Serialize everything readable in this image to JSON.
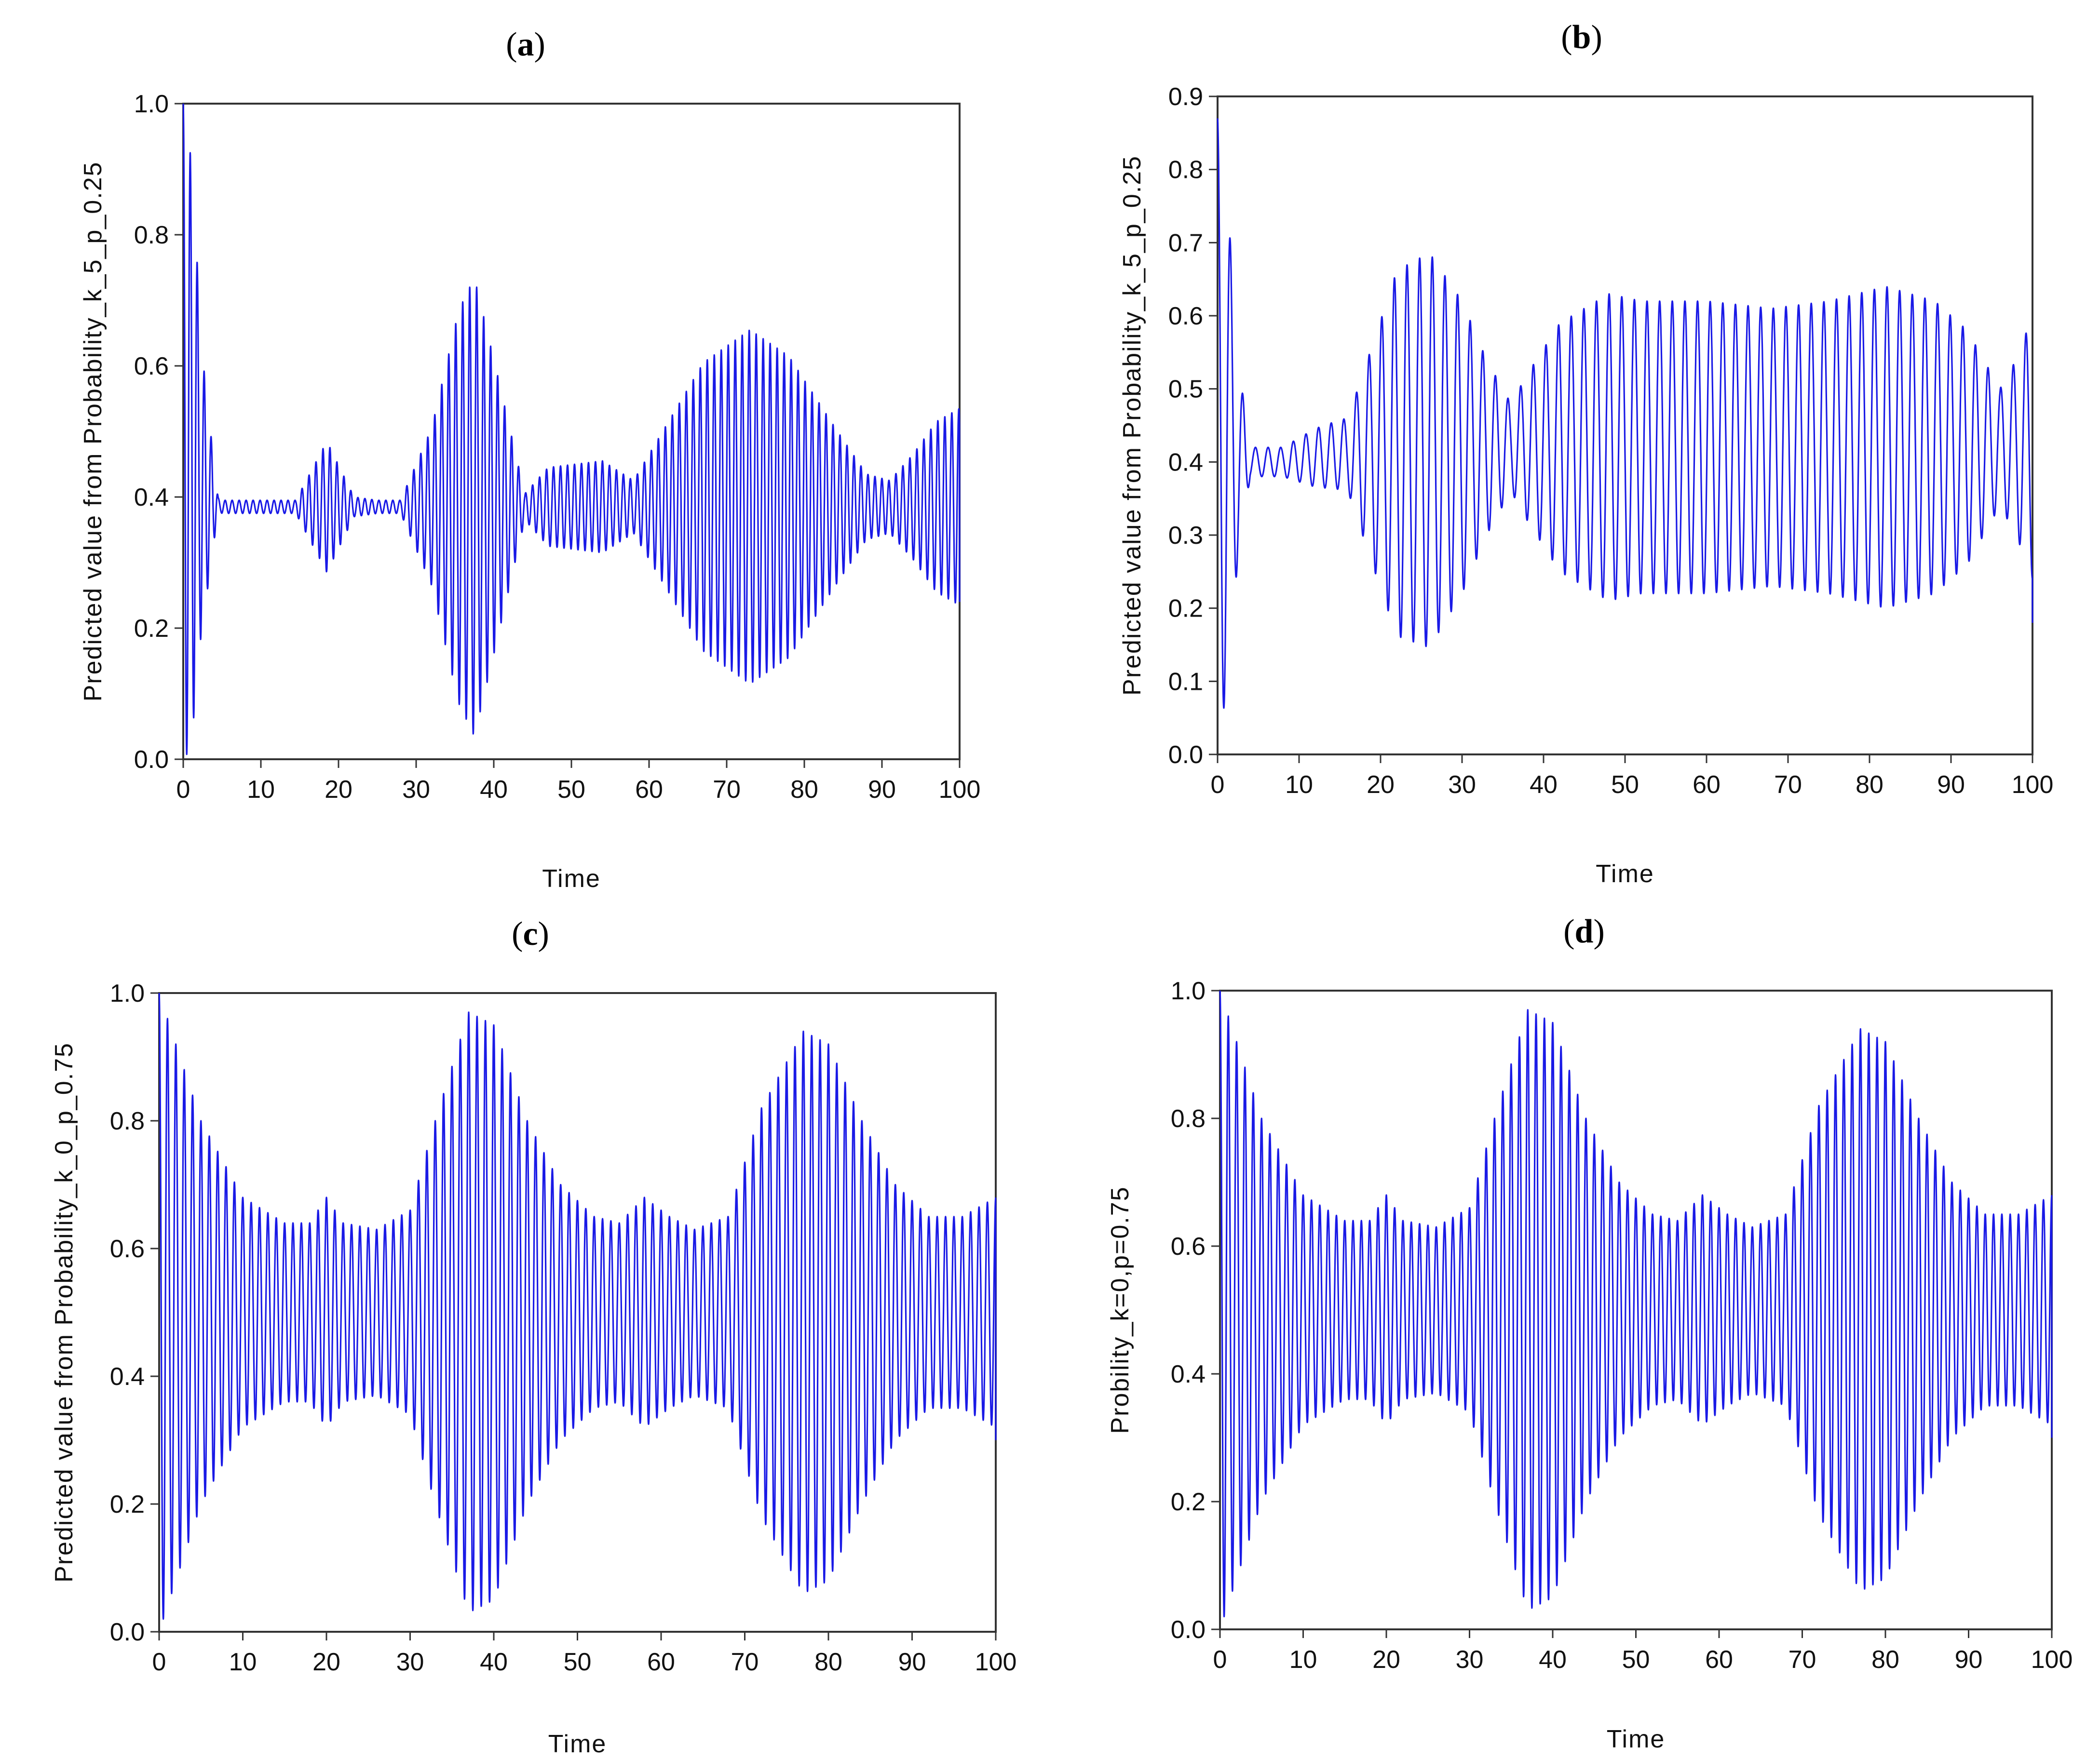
{
  "figure": {
    "background": "#ffffff",
    "line_color": "#1a1ae6"
  },
  "chart_data": [
    {
      "id": "a",
      "panel_label": "a",
      "type": "line",
      "title": "(a)",
      "xlabel": "Time",
      "ylabel": "Predicted value from Probability_k_5_p_0.25",
      "xlim": [
        0,
        100
      ],
      "ylim": [
        0.0,
        1.0
      ],
      "x_ticks": [
        0,
        10,
        20,
        30,
        40,
        50,
        60,
        70,
        80,
        90,
        100
      ],
      "x_tick_labels": [
        "0",
        "10",
        "20",
        "30",
        "40",
        "50",
        "60",
        "70",
        "80",
        "90",
        "100"
      ],
      "y_ticks": [
        0.0,
        0.2,
        0.4,
        0.6,
        0.8,
        1.0
      ],
      "y_tick_labels": [
        "0.0",
        "0.2",
        "0.4",
        "0.6",
        "0.8",
        "1.0"
      ],
      "series": [
        {
          "name": "Predicted value from Probability_k_5_p_0.25",
          "color": "#1a1ae6",
          "period": 0.9,
          "center": [
            [
              0,
              0.5
            ],
            [
              3,
              0.4
            ],
            [
              5,
              0.385
            ],
            [
              100,
              0.385
            ]
          ],
          "amplitude": [
            [
              0,
              0.5
            ],
            [
              1,
              0.45
            ],
            [
              2.5,
              0.2
            ],
            [
              4.5,
              0.01
            ],
            [
              14.5,
              0.01
            ],
            [
              18.5,
              0.1
            ],
            [
              22,
              0.015
            ],
            [
              25,
              0.01
            ],
            [
              28,
              0.01
            ],
            [
              32,
              0.12
            ],
            [
              35.5,
              0.3
            ],
            [
              37.5,
              0.35
            ],
            [
              40.5,
              0.2
            ],
            [
              44,
              0.02
            ],
            [
              47,
              0.06
            ],
            [
              54,
              0.07
            ],
            [
              58,
              0.04
            ],
            [
              62,
              0.12
            ],
            [
              67,
              0.22
            ],
            [
              73,
              0.27
            ],
            [
              78,
              0.23
            ],
            [
              84,
              0.12
            ],
            [
              88,
              0.05
            ],
            [
              91,
              0.04
            ],
            [
              94,
              0.08
            ],
            [
              97,
              0.13
            ],
            [
              100,
              0.15
            ]
          ],
          "end_value": 0.24
        }
      ]
    },
    {
      "id": "b",
      "panel_label": "b",
      "type": "line",
      "title": "(b)",
      "xlabel": "Time",
      "ylabel": "Predicted value from Probability_k_5_p_0.25",
      "xlim": [
        0,
        100
      ],
      "ylim": [
        0.0,
        0.9
      ],
      "x_ticks": [
        0,
        10,
        20,
        30,
        40,
        50,
        60,
        70,
        80,
        90,
        100
      ],
      "x_tick_labels": [
        "0",
        "10",
        "20",
        "30",
        "40",
        "50",
        "60",
        "70",
        "80",
        "90",
        "100"
      ],
      "y_ticks": [
        0.0,
        0.1,
        0.2,
        0.3,
        0.4,
        0.5,
        0.6,
        0.7,
        0.8,
        0.9
      ],
      "y_tick_labels": [
        "0.0",
        "0.1",
        "0.2",
        "0.3",
        "0.4",
        "0.5",
        "0.6",
        "0.7",
        "0.8",
        "0.9"
      ],
      "series": [
        {
          "name": "Predicted value from Probability_k_5_p_0.25",
          "color": "#1a1ae6",
          "period": 1.55,
          "center": [
            [
              0,
              0.45
            ],
            [
              3,
              0.4
            ],
            [
              8,
              0.4
            ],
            [
              15,
              0.41
            ],
            [
              20,
              0.41
            ],
            [
              30,
              0.42
            ],
            [
              100,
              0.42
            ]
          ],
          "amplitude": [
            [
              0,
              0.42
            ],
            [
              1,
              0.36
            ],
            [
              2.5,
              0.14
            ],
            [
              4,
              0.02
            ],
            [
              8,
              0.02
            ],
            [
              12,
              0.04
            ],
            [
              16,
              0.05
            ],
            [
              19,
              0.15
            ],
            [
              22,
              0.25
            ],
            [
              26,
              0.27
            ],
            [
              30,
              0.2
            ],
            [
              33,
              0.12
            ],
            [
              36,
              0.06
            ],
            [
              38,
              0.1
            ],
            [
              42,
              0.17
            ],
            [
              48,
              0.21
            ],
            [
              52,
              0.2
            ],
            [
              60,
              0.2
            ],
            [
              68,
              0.19
            ],
            [
              75,
              0.2
            ],
            [
              82,
              0.22
            ],
            [
              88,
              0.2
            ],
            [
              92,
              0.16
            ],
            [
              96,
              0.08
            ],
            [
              98,
              0.12
            ],
            [
              100,
              0.18
            ]
          ],
          "end_value": 0.18
        }
      ]
    },
    {
      "id": "c",
      "panel_label": "c",
      "type": "line",
      "title": "(c)",
      "xlabel": "Time",
      "ylabel": "Predicted value from Probability_k_0_p_0.75",
      "xlim": [
        0,
        100
      ],
      "ylim": [
        0.0,
        1.0
      ],
      "x_ticks": [
        0,
        10,
        20,
        30,
        40,
        50,
        60,
        70,
        80,
        90,
        100
      ],
      "x_tick_labels": [
        "0",
        "10",
        "20",
        "30",
        "40",
        "50",
        "60",
        "70",
        "80",
        "90",
        "100"
      ],
      "y_ticks": [
        0.0,
        0.2,
        0.4,
        0.6,
        0.8,
        1.0
      ],
      "y_tick_labels": [
        "0.0",
        "0.2",
        "0.4",
        "0.6",
        "0.8",
        "1.0"
      ],
      "series": [
        {
          "name": "Predicted value from Probability_k_0_p_0.75",
          "color": "#1a1ae6",
          "period": 1.0,
          "center": [
            [
              0,
              0.5
            ],
            [
              100,
              0.5
            ]
          ],
          "amplitude": [
            [
              0,
              0.5
            ],
            [
              1,
              0.46
            ],
            [
              5,
              0.3
            ],
            [
              10,
              0.18
            ],
            [
              15,
              0.14
            ],
            [
              18,
              0.14
            ],
            [
              20,
              0.18
            ],
            [
              22,
              0.14
            ],
            [
              26,
              0.13
            ],
            [
              30,
              0.16
            ],
            [
              33,
              0.3
            ],
            [
              37,
              0.47
            ],
            [
              40,
              0.45
            ],
            [
              44,
              0.3
            ],
            [
              48,
              0.2
            ],
            [
              52,
              0.15
            ],
            [
              55,
              0.14
            ],
            [
              58,
              0.18
            ],
            [
              61,
              0.15
            ],
            [
              64,
              0.13
            ],
            [
              68,
              0.15
            ],
            [
              72,
              0.32
            ],
            [
              77,
              0.44
            ],
            [
              80,
              0.42
            ],
            [
              84,
              0.3
            ],
            [
              88,
              0.2
            ],
            [
              92,
              0.15
            ],
            [
              96,
              0.15
            ],
            [
              100,
              0.18
            ]
          ],
          "end_value": 0.3
        }
      ]
    },
    {
      "id": "d",
      "panel_label": "d",
      "type": "line",
      "title": "(d)",
      "xlabel": "Time",
      "ylabel": "Probility_k=0,p=0.75",
      "xlim": [
        0,
        100
      ],
      "ylim": [
        0.0,
        1.0
      ],
      "x_ticks": [
        0,
        10,
        20,
        30,
        40,
        50,
        60,
        70,
        80,
        90,
        100
      ],
      "x_tick_labels": [
        "0",
        "10",
        "20",
        "30",
        "40",
        "50",
        "60",
        "70",
        "80",
        "90",
        "100"
      ],
      "y_ticks": [
        0.0,
        0.2,
        0.4,
        0.6,
        0.8,
        1.0
      ],
      "y_tick_labels": [
        "0.0",
        "0.2",
        "0.4",
        "0.6",
        "0.8",
        "1.0"
      ],
      "series": [
        {
          "name": "Probility_k=0,p=0.75",
          "color": "#1a1ae6",
          "period": 1.0,
          "center": [
            [
              0,
              0.5
            ],
            [
              100,
              0.5
            ]
          ],
          "amplitude": [
            [
              0,
              0.5
            ],
            [
              1,
              0.46
            ],
            [
              5,
              0.3
            ],
            [
              10,
              0.18
            ],
            [
              15,
              0.14
            ],
            [
              18,
              0.14
            ],
            [
              20,
              0.18
            ],
            [
              22,
              0.14
            ],
            [
              26,
              0.13
            ],
            [
              30,
              0.16
            ],
            [
              33,
              0.3
            ],
            [
              37,
              0.47
            ],
            [
              40,
              0.45
            ],
            [
              44,
              0.3
            ],
            [
              48,
              0.2
            ],
            [
              52,
              0.15
            ],
            [
              55,
              0.14
            ],
            [
              58,
              0.18
            ],
            [
              61,
              0.15
            ],
            [
              64,
              0.13
            ],
            [
              68,
              0.15
            ],
            [
              72,
              0.32
            ],
            [
              77,
              0.44
            ],
            [
              80,
              0.42
            ],
            [
              84,
              0.3
            ],
            [
              88,
              0.2
            ],
            [
              92,
              0.15
            ],
            [
              96,
              0.15
            ],
            [
              100,
              0.18
            ]
          ],
          "end_value": 0.3
        }
      ]
    }
  ]
}
